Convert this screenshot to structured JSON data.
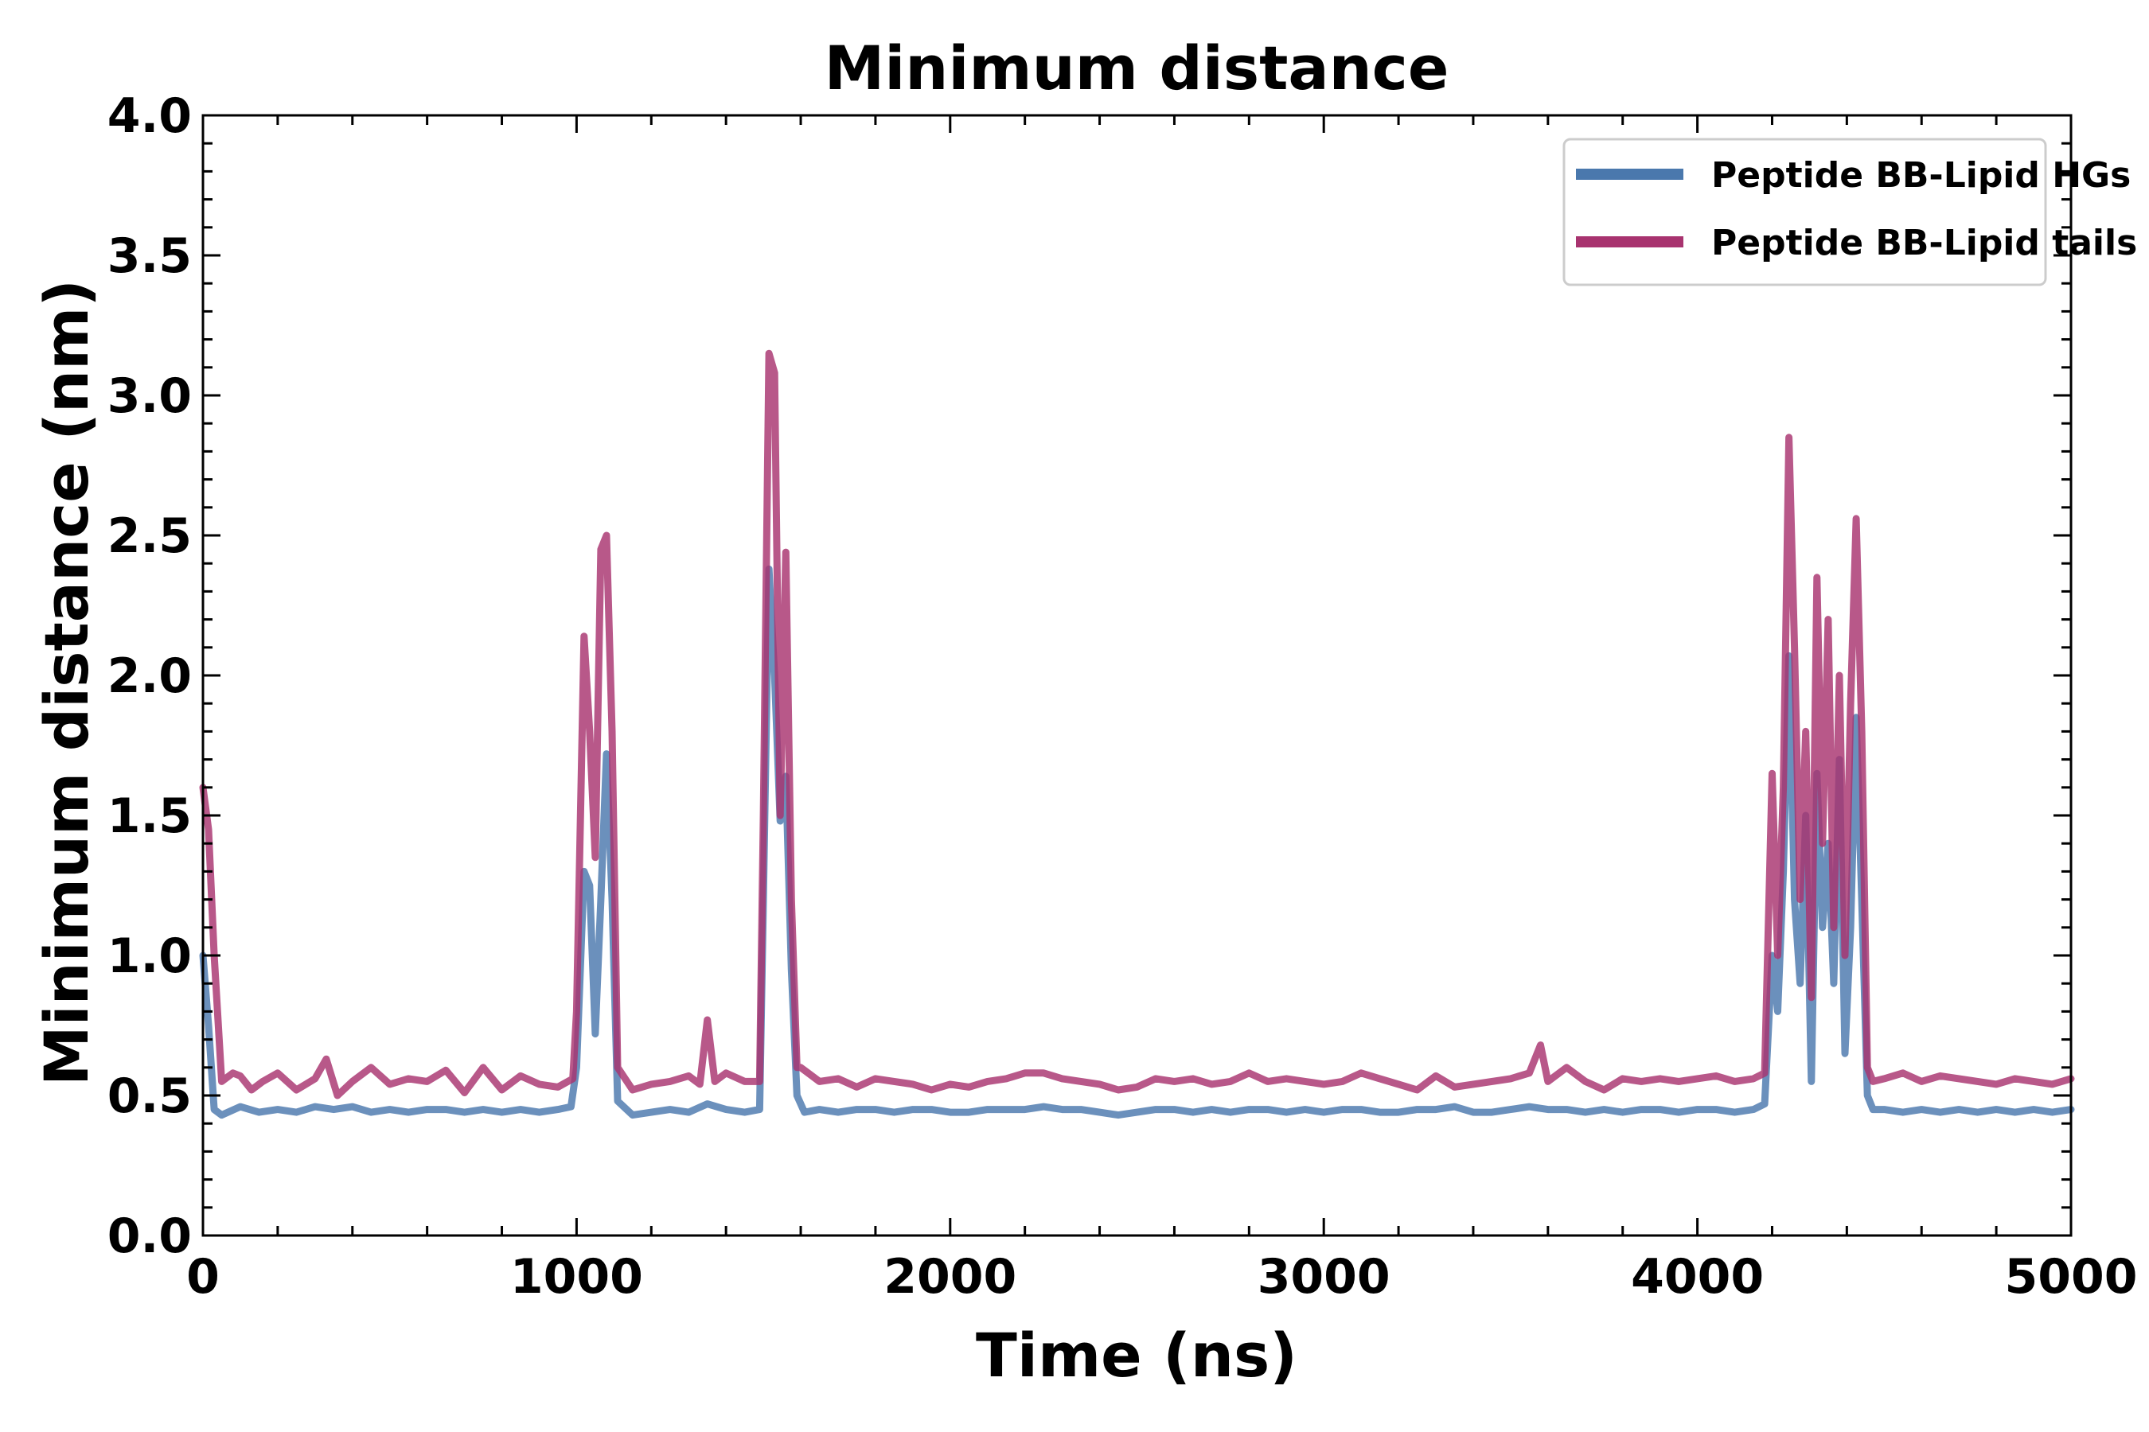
{
  "chart_data": {
    "type": "line",
    "title": "Minimum distance",
    "xlabel": "Time (ns)",
    "ylabel": "Minimum distance (nm)",
    "xlim": [
      0,
      5000
    ],
    "ylim": [
      0.0,
      4.0
    ],
    "xticks": [
      0,
      1000,
      2000,
      3000,
      4000,
      5000
    ],
    "xtick_labels": [
      "0",
      "1000",
      "2000",
      "3000",
      "4000",
      "5000"
    ],
    "yticks": [
      0.0,
      0.5,
      1.0,
      1.5,
      2.0,
      2.5,
      3.0,
      3.5,
      4.0
    ],
    "ytick_labels": [
      "0.0",
      "0.5",
      "1.0",
      "1.5",
      "2.0",
      "2.5",
      "3.0",
      "3.5",
      "4.0"
    ],
    "grid": false,
    "legend_position": "top-right",
    "series": [
      {
        "name": "Peptide BB-Lipid HGs",
        "color": "#4a78ad",
        "points": [
          [
            0,
            1.0
          ],
          [
            15,
            0.75
          ],
          [
            30,
            0.45
          ],
          [
            50,
            0.43
          ],
          [
            100,
            0.46
          ],
          [
            150,
            0.44
          ],
          [
            200,
            0.45
          ],
          [
            250,
            0.44
          ],
          [
            300,
            0.46
          ],
          [
            350,
            0.45
          ],
          [
            400,
            0.46
          ],
          [
            450,
            0.44
          ],
          [
            500,
            0.45
          ],
          [
            550,
            0.44
          ],
          [
            600,
            0.45
          ],
          [
            650,
            0.45
          ],
          [
            700,
            0.44
          ],
          [
            750,
            0.45
          ],
          [
            800,
            0.44
          ],
          [
            850,
            0.45
          ],
          [
            900,
            0.44
          ],
          [
            950,
            0.45
          ],
          [
            985,
            0.46
          ],
          [
            1000,
            0.6
          ],
          [
            1020,
            1.3
          ],
          [
            1035,
            1.25
          ],
          [
            1050,
            0.72
          ],
          [
            1065,
            1.2
          ],
          [
            1080,
            1.72
          ],
          [
            1095,
            1.2
          ],
          [
            1110,
            0.48
          ],
          [
            1150,
            0.43
          ],
          [
            1200,
            0.44
          ],
          [
            1250,
            0.45
          ],
          [
            1300,
            0.44
          ],
          [
            1350,
            0.47
          ],
          [
            1400,
            0.45
          ],
          [
            1450,
            0.44
          ],
          [
            1490,
            0.45
          ],
          [
            1500,
            1.2
          ],
          [
            1515,
            2.38
          ],
          [
            1530,
            2.0
          ],
          [
            1545,
            1.48
          ],
          [
            1560,
            1.64
          ],
          [
            1575,
            0.95
          ],
          [
            1590,
            0.5
          ],
          [
            1610,
            0.44
          ],
          [
            1650,
            0.45
          ],
          [
            1700,
            0.44
          ],
          [
            1750,
            0.45
          ],
          [
            1800,
            0.45
          ],
          [
            1850,
            0.44
          ],
          [
            1900,
            0.45
          ],
          [
            1950,
            0.45
          ],
          [
            2000,
            0.44
          ],
          [
            2050,
            0.44
          ],
          [
            2100,
            0.45
          ],
          [
            2150,
            0.45
          ],
          [
            2200,
            0.45
          ],
          [
            2250,
            0.46
          ],
          [
            2300,
            0.45
          ],
          [
            2350,
            0.45
          ],
          [
            2400,
            0.44
          ],
          [
            2450,
            0.43
          ],
          [
            2500,
            0.44
          ],
          [
            2550,
            0.45
          ],
          [
            2600,
            0.45
          ],
          [
            2650,
            0.44
          ],
          [
            2700,
            0.45
          ],
          [
            2750,
            0.44
          ],
          [
            2800,
            0.45
          ],
          [
            2850,
            0.45
          ],
          [
            2900,
            0.44
          ],
          [
            2950,
            0.45
          ],
          [
            3000,
            0.44
          ],
          [
            3050,
            0.45
          ],
          [
            3100,
            0.45
          ],
          [
            3150,
            0.44
          ],
          [
            3200,
            0.44
          ],
          [
            3250,
            0.45
          ],
          [
            3300,
            0.45
          ],
          [
            3350,
            0.46
          ],
          [
            3400,
            0.44
          ],
          [
            3450,
            0.44
          ],
          [
            3500,
            0.45
          ],
          [
            3550,
            0.46
          ],
          [
            3600,
            0.45
          ],
          [
            3650,
            0.45
          ],
          [
            3700,
            0.44
          ],
          [
            3750,
            0.45
          ],
          [
            3800,
            0.44
          ],
          [
            3850,
            0.45
          ],
          [
            3900,
            0.45
          ],
          [
            3950,
            0.44
          ],
          [
            4000,
            0.45
          ],
          [
            4050,
            0.45
          ],
          [
            4100,
            0.44
          ],
          [
            4150,
            0.45
          ],
          [
            4180,
            0.47
          ],
          [
            4200,
            1.0
          ],
          [
            4215,
            0.8
          ],
          [
            4230,
            1.3
          ],
          [
            4245,
            2.07
          ],
          [
            4260,
            1.2
          ],
          [
            4275,
            0.9
          ],
          [
            4290,
            1.5
          ],
          [
            4305,
            0.55
          ],
          [
            4320,
            1.65
          ],
          [
            4335,
            1.1
          ],
          [
            4350,
            1.4
          ],
          [
            4365,
            0.9
          ],
          [
            4380,
            1.7
          ],
          [
            4395,
            0.65
          ],
          [
            4410,
            1.1
          ],
          [
            4425,
            1.85
          ],
          [
            4440,
            1.2
          ],
          [
            4455,
            0.5
          ],
          [
            4470,
            0.45
          ],
          [
            4500,
            0.45
          ],
          [
            4550,
            0.44
          ],
          [
            4600,
            0.45
          ],
          [
            4650,
            0.44
          ],
          [
            4700,
            0.45
          ],
          [
            4750,
            0.44
          ],
          [
            4800,
            0.45
          ],
          [
            4850,
            0.44
          ],
          [
            4900,
            0.45
          ],
          [
            4950,
            0.44
          ],
          [
            5000,
            0.45
          ]
        ]
      },
      {
        "name": "Peptide BB-Lipid tails",
        "color": "#a8336f",
        "points": [
          [
            0,
            1.6
          ],
          [
            15,
            1.45
          ],
          [
            30,
            1.0
          ],
          [
            50,
            0.55
          ],
          [
            80,
            0.58
          ],
          [
            100,
            0.57
          ],
          [
            130,
            0.52
          ],
          [
            160,
            0.55
          ],
          [
            200,
            0.58
          ],
          [
            250,
            0.52
          ],
          [
            300,
            0.56
          ],
          [
            330,
            0.63
          ],
          [
            360,
            0.5
          ],
          [
            400,
            0.55
          ],
          [
            450,
            0.6
          ],
          [
            500,
            0.54
          ],
          [
            550,
            0.56
          ],
          [
            600,
            0.55
          ],
          [
            650,
            0.59
          ],
          [
            700,
            0.51
          ],
          [
            750,
            0.6
          ],
          [
            800,
            0.52
          ],
          [
            850,
            0.57
          ],
          [
            900,
            0.54
          ],
          [
            950,
            0.53
          ],
          [
            990,
            0.56
          ],
          [
            1000,
            0.8
          ],
          [
            1020,
            2.14
          ],
          [
            1035,
            1.8
          ],
          [
            1050,
            1.35
          ],
          [
            1065,
            2.45
          ],
          [
            1080,
            2.5
          ],
          [
            1095,
            1.8
          ],
          [
            1110,
            0.6
          ],
          [
            1150,
            0.52
          ],
          [
            1200,
            0.54
          ],
          [
            1250,
            0.55
          ],
          [
            1300,
            0.57
          ],
          [
            1330,
            0.54
          ],
          [
            1350,
            0.77
          ],
          [
            1370,
            0.55
          ],
          [
            1400,
            0.58
          ],
          [
            1450,
            0.55
          ],
          [
            1490,
            0.55
          ],
          [
            1500,
            1.5
          ],
          [
            1515,
            3.15
          ],
          [
            1530,
            3.08
          ],
          [
            1545,
            1.5
          ],
          [
            1560,
            2.44
          ],
          [
            1575,
            1.2
          ],
          [
            1590,
            0.6
          ],
          [
            1600,
            0.6
          ],
          [
            1650,
            0.55
          ],
          [
            1700,
            0.56
          ],
          [
            1750,
            0.53
          ],
          [
            1800,
            0.56
          ],
          [
            1850,
            0.55
          ],
          [
            1900,
            0.54
          ],
          [
            1950,
            0.52
          ],
          [
            2000,
            0.54
          ],
          [
            2050,
            0.53
          ],
          [
            2100,
            0.55
          ],
          [
            2150,
            0.56
          ],
          [
            2200,
            0.58
          ],
          [
            2250,
            0.58
          ],
          [
            2300,
            0.56
          ],
          [
            2350,
            0.55
          ],
          [
            2400,
            0.54
          ],
          [
            2450,
            0.52
          ],
          [
            2500,
            0.53
          ],
          [
            2550,
            0.56
          ],
          [
            2600,
            0.55
          ],
          [
            2650,
            0.56
          ],
          [
            2700,
            0.54
          ],
          [
            2750,
            0.55
          ],
          [
            2800,
            0.58
          ],
          [
            2850,
            0.55
          ],
          [
            2900,
            0.56
          ],
          [
            2950,
            0.55
          ],
          [
            3000,
            0.54
          ],
          [
            3050,
            0.55
          ],
          [
            3100,
            0.58
          ],
          [
            3150,
            0.56
          ],
          [
            3200,
            0.54
          ],
          [
            3250,
            0.52
          ],
          [
            3300,
            0.57
          ],
          [
            3350,
            0.53
          ],
          [
            3400,
            0.54
          ],
          [
            3450,
            0.55
          ],
          [
            3500,
            0.56
          ],
          [
            3550,
            0.58
          ],
          [
            3580,
            0.68
          ],
          [
            3600,
            0.55
          ],
          [
            3650,
            0.6
          ],
          [
            3700,
            0.55
          ],
          [
            3750,
            0.52
          ],
          [
            3800,
            0.56
          ],
          [
            3850,
            0.55
          ],
          [
            3900,
            0.56
          ],
          [
            3950,
            0.55
          ],
          [
            4000,
            0.56
          ],
          [
            4050,
            0.57
          ],
          [
            4100,
            0.55
          ],
          [
            4150,
            0.56
          ],
          [
            4180,
            0.58
          ],
          [
            4200,
            1.65
          ],
          [
            4215,
            1.0
          ],
          [
            4230,
            1.6
          ],
          [
            4245,
            2.85
          ],
          [
            4260,
            2.1
          ],
          [
            4275,
            1.2
          ],
          [
            4290,
            1.8
          ],
          [
            4305,
            0.85
          ],
          [
            4320,
            2.35
          ],
          [
            4335,
            1.4
          ],
          [
            4350,
            2.2
          ],
          [
            4365,
            1.1
          ],
          [
            4380,
            2.0
          ],
          [
            4395,
            1.0
          ],
          [
            4410,
            1.9
          ],
          [
            4425,
            2.56
          ],
          [
            4440,
            1.8
          ],
          [
            4455,
            0.6
          ],
          [
            4470,
            0.55
          ],
          [
            4500,
            0.56
          ],
          [
            4550,
            0.58
          ],
          [
            4600,
            0.55
          ],
          [
            4650,
            0.57
          ],
          [
            4700,
            0.56
          ],
          [
            4750,
            0.55
          ],
          [
            4800,
            0.54
          ],
          [
            4850,
            0.56
          ],
          [
            4900,
            0.55
          ],
          [
            4950,
            0.54
          ],
          [
            5000,
            0.56
          ]
        ]
      }
    ]
  }
}
